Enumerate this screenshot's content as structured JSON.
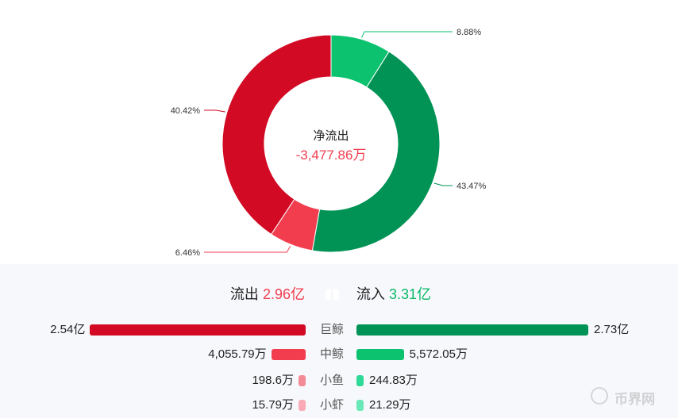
{
  "chart_data": [
    {
      "type": "pie",
      "title": "",
      "center_title": "净流出",
      "center_value": "-3,477.86万",
      "legend": "none",
      "slices": [
        {
          "label": "8.88%",
          "value": 8.88,
          "color": "#0cc26f"
        },
        {
          "label": "43.47%",
          "value": 43.47,
          "color": "#009355"
        },
        {
          "label": "6.46%",
          "value": 6.46,
          "color": "#f23d4f"
        },
        {
          "label": "40.42%",
          "value": 40.42,
          "color": "#d20a24"
        }
      ]
    },
    {
      "type": "bar",
      "title": "",
      "outflow_label": "流出",
      "outflow_total": "2.96亿",
      "inflow_label": "流入",
      "inflow_total": "3.31亿",
      "categories": [
        "巨鲸",
        "中鲸",
        "小鱼",
        "小虾"
      ],
      "series": [
        {
          "name": "流出",
          "values": [
            25400,
            4055.79,
            198.6,
            15.79
          ],
          "labels": [
            "2.54亿",
            "4,055.79万",
            "198.6万",
            "15.79万"
          ],
          "colors": [
            "#d20a24",
            "#f23d4f",
            "#f58a97",
            "#f9aab5"
          ]
        },
        {
          "name": "流入",
          "values": [
            27300,
            5572.05,
            244.83,
            21.29
          ],
          "labels": [
            "2.73亿",
            "5,572.05万",
            "244.83万",
            "21.29万"
          ],
          "colors": [
            "#009355",
            "#0cc26f",
            "#2fd996",
            "#6ae8b8"
          ]
        }
      ]
    }
  ],
  "watermark": {
    "text": "币界网",
    "icon": "bitcoin-icon"
  }
}
